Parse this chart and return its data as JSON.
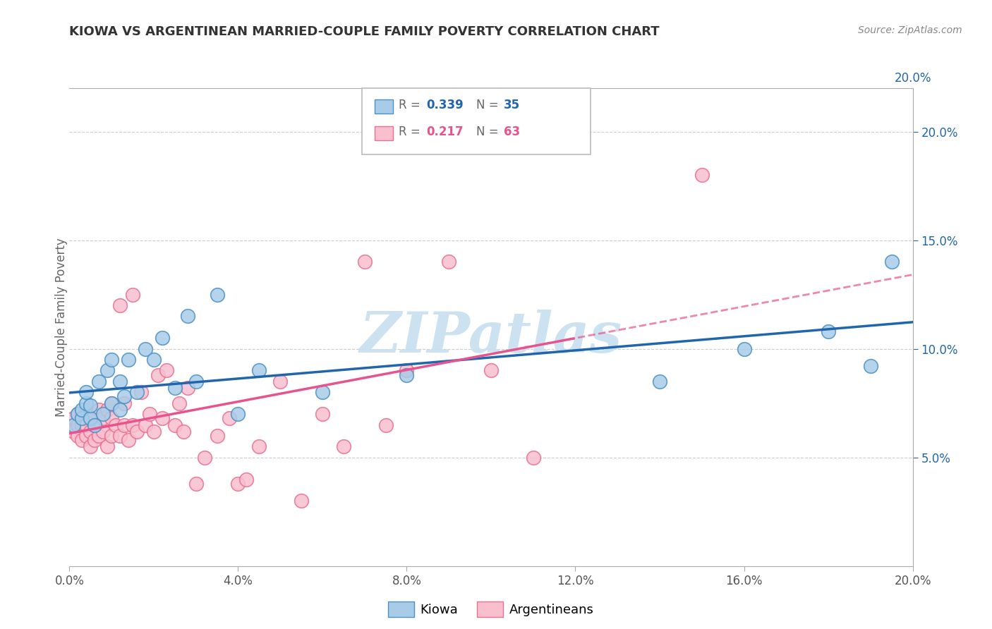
{
  "title": "KIOWA VS ARGENTINEAN MARRIED-COUPLE FAMILY POVERTY CORRELATION CHART",
  "source": "Source: ZipAtlas.com",
  "ylabel": "Married-Couple Family Poverty",
  "xlim": [
    0.0,
    0.2
  ],
  "ylim": [
    0.0,
    0.22
  ],
  "xticks": [
    0.0,
    0.04,
    0.08,
    0.12,
    0.16,
    0.2
  ],
  "xtick_labels": [
    "0.0%",
    "4.0%",
    "8.0%",
    "12.0%",
    "16.0%",
    "20.0%"
  ],
  "yticks_right": [
    0.05,
    0.1,
    0.15,
    0.2
  ],
  "ytick_labels_right": [
    "5.0%",
    "10.0%",
    "15.0%",
    "20.0%"
  ],
  "kiowa_color": "#a8cce8",
  "kiowa_edge_color": "#4a90c4",
  "argentinean_color": "#f9bfcf",
  "argentinean_edge_color": "#e87090",
  "kiowa_line_color": "#2166ac",
  "argentinean_line_color": "#e8538e",
  "kiowa_R": 0.339,
  "kiowa_N": 35,
  "argentinean_R": 0.217,
  "argentinean_N": 63,
  "watermark": "ZIPatlas",
  "watermark_color": "#c8dff0",
  "background_color": "#ffffff",
  "grid_color": "#cccccc",
  "kiowa_x": [
    0.001,
    0.002,
    0.003,
    0.003,
    0.004,
    0.004,
    0.005,
    0.005,
    0.006,
    0.007,
    0.008,
    0.009,
    0.01,
    0.01,
    0.012,
    0.012,
    0.013,
    0.014,
    0.016,
    0.018,
    0.02,
    0.022,
    0.025,
    0.028,
    0.03,
    0.035,
    0.04,
    0.045,
    0.06,
    0.08,
    0.14,
    0.16,
    0.18,
    0.19,
    0.195
  ],
  "kiowa_y": [
    0.065,
    0.07,
    0.068,
    0.072,
    0.075,
    0.08,
    0.068,
    0.074,
    0.065,
    0.085,
    0.07,
    0.09,
    0.075,
    0.095,
    0.072,
    0.085,
    0.078,
    0.095,
    0.08,
    0.1,
    0.095,
    0.105,
    0.082,
    0.115,
    0.085,
    0.125,
    0.07,
    0.09,
    0.08,
    0.088,
    0.085,
    0.1,
    0.108,
    0.092,
    0.14
  ],
  "argentinean_x": [
    0.001,
    0.001,
    0.002,
    0.002,
    0.002,
    0.003,
    0.003,
    0.003,
    0.004,
    0.004,
    0.004,
    0.005,
    0.005,
    0.005,
    0.006,
    0.006,
    0.007,
    0.007,
    0.008,
    0.008,
    0.009,
    0.009,
    0.01,
    0.01,
    0.01,
    0.011,
    0.012,
    0.012,
    0.013,
    0.013,
    0.014,
    0.015,
    0.015,
    0.016,
    0.017,
    0.018,
    0.019,
    0.02,
    0.021,
    0.022,
    0.023,
    0.025,
    0.026,
    0.027,
    0.028,
    0.03,
    0.032,
    0.035,
    0.038,
    0.04,
    0.042,
    0.045,
    0.05,
    0.055,
    0.06,
    0.065,
    0.07,
    0.075,
    0.08,
    0.09,
    0.1,
    0.11,
    0.15
  ],
  "argentinean_y": [
    0.062,
    0.068,
    0.06,
    0.065,
    0.07,
    0.058,
    0.065,
    0.068,
    0.06,
    0.065,
    0.07,
    0.055,
    0.062,
    0.068,
    0.058,
    0.065,
    0.06,
    0.072,
    0.062,
    0.068,
    0.055,
    0.072,
    0.06,
    0.068,
    0.075,
    0.065,
    0.06,
    0.12,
    0.065,
    0.075,
    0.058,
    0.065,
    0.125,
    0.062,
    0.08,
    0.065,
    0.07,
    0.062,
    0.088,
    0.068,
    0.09,
    0.065,
    0.075,
    0.062,
    0.082,
    0.038,
    0.05,
    0.06,
    0.068,
    0.038,
    0.04,
    0.055,
    0.085,
    0.03,
    0.07,
    0.055,
    0.14,
    0.065,
    0.09,
    0.14,
    0.09,
    0.05,
    0.18
  ]
}
